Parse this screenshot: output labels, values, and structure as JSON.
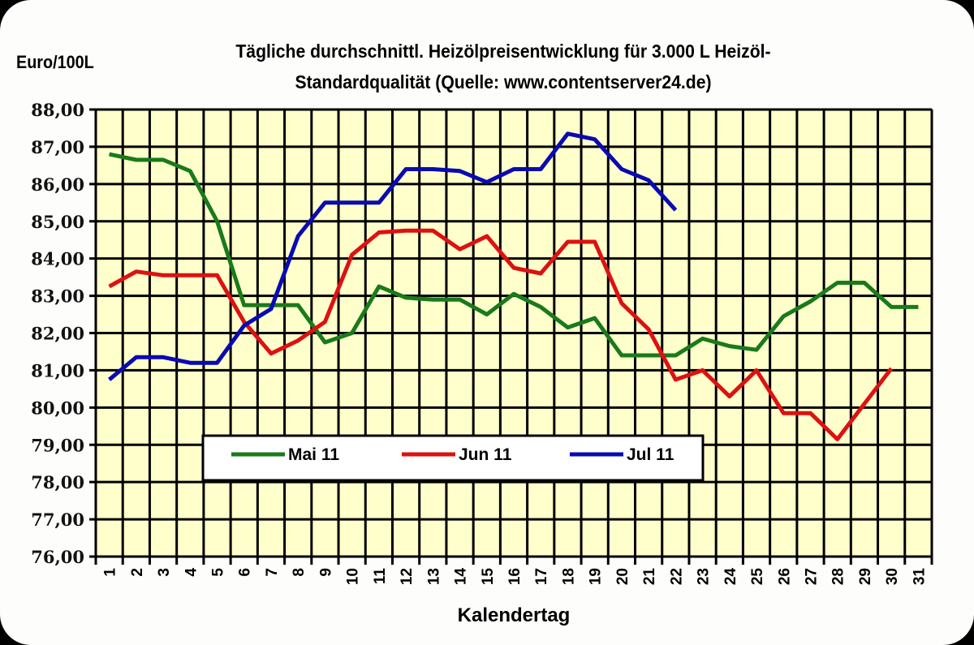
{
  "chart_data": {
    "type": "line",
    "title": "Tägliche durchschnittl. Heizölpreisentwicklung für 3.000 L Heizöl-Standardqualität (Quelle: www.contentserver24.de)",
    "title_lines": [
      "Tägliche durchschnittl. Heizölpreisentwicklung für 3.000 L Heizöl-",
      "Standardqualität (Quelle: www.contentserver24.de)"
    ],
    "xlabel": "Kalendertag",
    "ylabel": "Euro/100L",
    "ylim": [
      76,
      88
    ],
    "ytick_step": 1,
    "ytick_labels": [
      "76,00",
      "77,00",
      "78,00",
      "79,00",
      "80,00",
      "81,00",
      "82,00",
      "83,00",
      "84,00",
      "85,00",
      "86,00",
      "87,00",
      "88,00"
    ],
    "x": [
      1,
      2,
      3,
      4,
      5,
      6,
      7,
      8,
      9,
      10,
      11,
      12,
      13,
      14,
      15,
      16,
      17,
      18,
      19,
      20,
      21,
      22,
      23,
      24,
      25,
      26,
      27,
      28,
      29,
      30,
      31
    ],
    "grid": true,
    "legend_position": "inside-lower-center",
    "plot_background": "#ffffcc",
    "series": [
      {
        "name": "Mai 11",
        "color": "#1a7a1a",
        "values": [
          86.8,
          86.65,
          86.65,
          86.35,
          85.0,
          82.75,
          82.75,
          82.75,
          81.75,
          82.0,
          83.25,
          82.95,
          82.9,
          82.9,
          82.5,
          83.05,
          82.7,
          82.15,
          82.4,
          81.4,
          81.4,
          81.4,
          81.85,
          81.65,
          81.55,
          82.45,
          82.85,
          83.35,
          83.35,
          82.7,
          82.7
        ]
      },
      {
        "name": "Jun 11",
        "color": "#dd1111",
        "values": [
          83.25,
          83.65,
          83.55,
          83.55,
          83.55,
          82.3,
          81.45,
          81.8,
          82.3,
          84.1,
          84.7,
          84.75,
          84.75,
          84.25,
          84.6,
          83.75,
          83.6,
          84.45,
          84.45,
          82.8,
          82.1,
          80.75,
          81.0,
          80.3,
          81.0,
          79.85,
          79.85,
          79.15,
          80.1,
          81.05,
          null
        ]
      },
      {
        "name": "Jul 11",
        "color": "#0a0ab4",
        "values": [
          80.75,
          81.35,
          81.35,
          81.2,
          81.2,
          82.2,
          82.65,
          84.6,
          85.5,
          85.5,
          85.5,
          86.4,
          86.4,
          86.35,
          86.05,
          86.4,
          86.4,
          87.35,
          87.2,
          86.4,
          86.1,
          85.3,
          null,
          null,
          null,
          null,
          null,
          null,
          null,
          null,
          null
        ]
      }
    ]
  }
}
